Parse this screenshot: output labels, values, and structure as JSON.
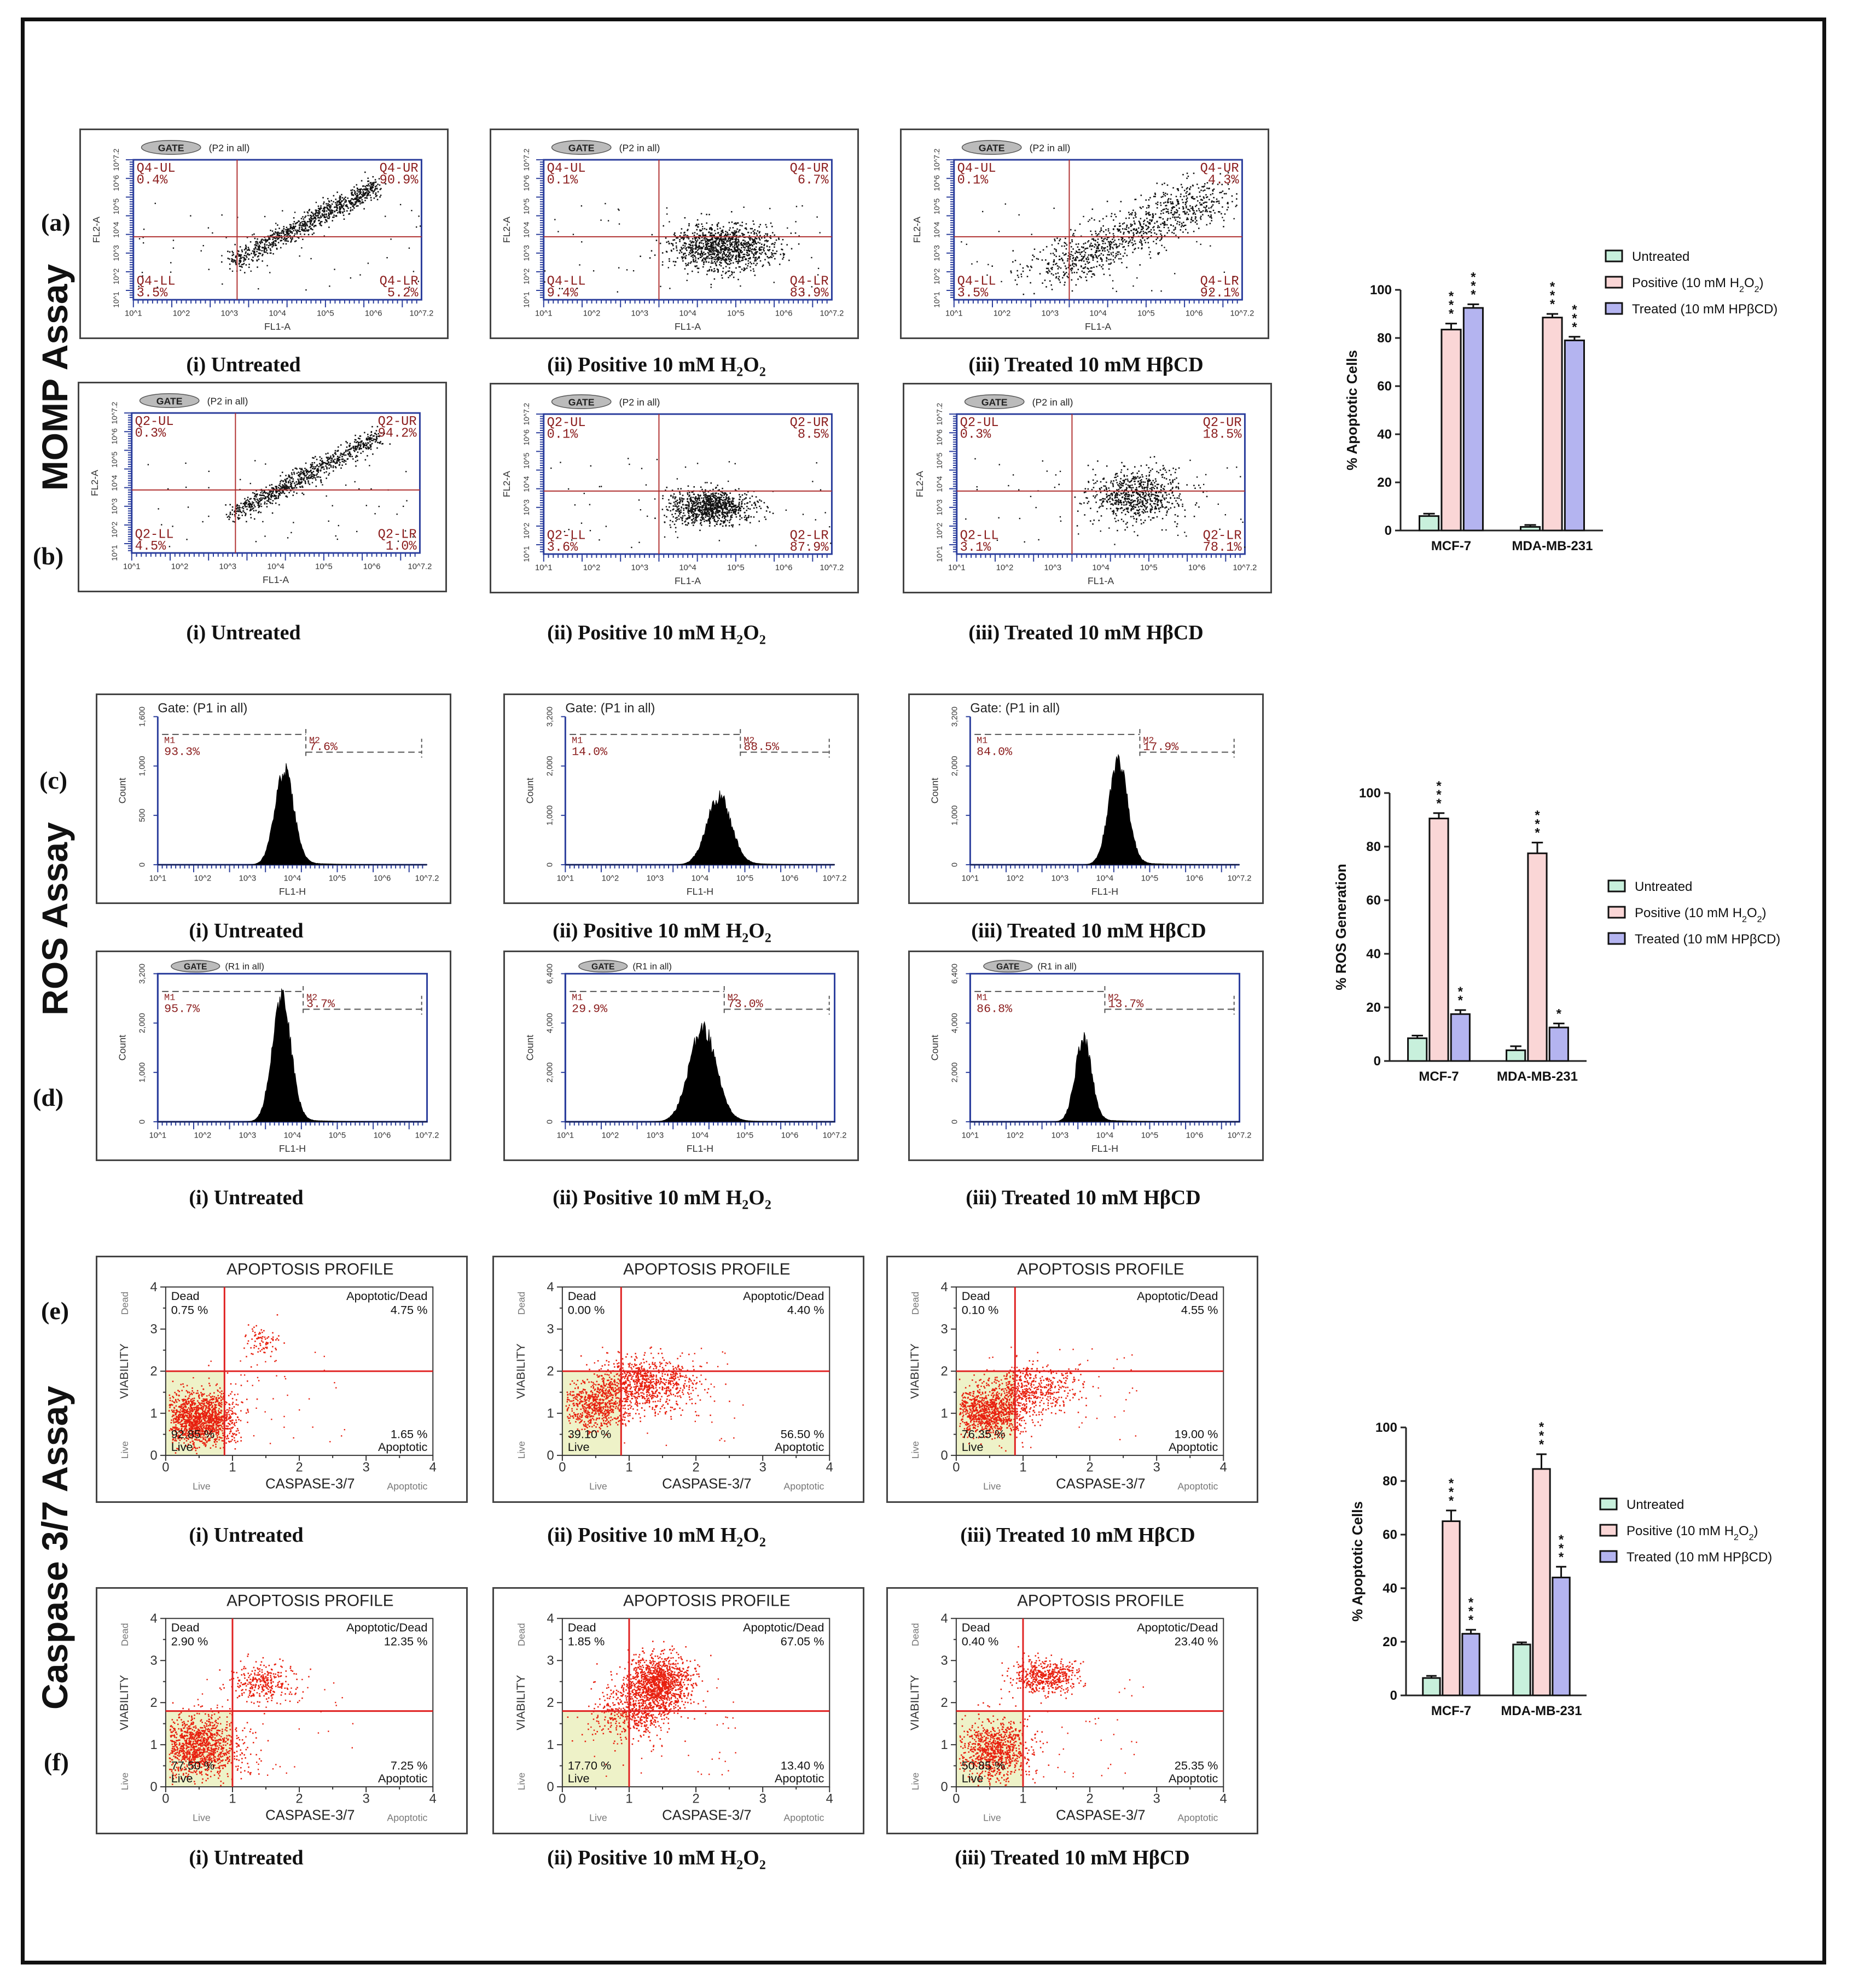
{
  "section_titles": {
    "momp": "MOMP Assay",
    "ros": "ROS Assay",
    "caspase": "Caspase 3/7  Assay"
  },
  "panel_labels": {
    "a": "(a)",
    "b": "(b)",
    "c": "(c)",
    "d": "(d)",
    "e": "(e)",
    "f": "(f)"
  },
  "captions": {
    "untreated": "(i) Untreated",
    "positive_prefix": "(ii) Positive 10 mM H",
    "positive_sub": "2",
    "positive_mid": "O",
    "positive_sub2": "2",
    "treated": "(iii)  Treated 10 mM HβCD"
  },
  "scatter_panels": {
    "gate_badge": "GATE",
    "a": {
      "gate": [
        "(P2 in all)",
        "(P2 in all)",
        "(P2 in all)"
      ],
      "q": [
        {
          "ul": "Q4-UL",
          "ul_v": "0.4%",
          "ur": "Q4-UR",
          "ur_v": "90.9%",
          "ll": "Q4-LL",
          "ll_v": "3.5%",
          "lr": "Q4-LR",
          "lr_v": "5.2%"
        },
        {
          "ul": "Q4-UL",
          "ul_v": "0.1%",
          "ur": "Q4-UR",
          "ur_v": "6.7%",
          "ll": "Q4-LL",
          "ll_v": "9.4%",
          "lr": "Q4-LR",
          "lr_v": "83.9%"
        },
        {
          "ul": "Q4-UL",
          "ul_v": "0.1%",
          "ur": "Q4-UR",
          "ur_v": "4.3%",
          "ll": "Q4-LL",
          "ll_v": "3.5%",
          "lr": "Q4-LR",
          "lr_v": "92.1%"
        }
      ]
    },
    "b": {
      "gate": [
        "(P2 in all)",
        "(P2 in all)",
        "(P2 in all)"
      ],
      "q": [
        {
          "ul": "Q2-UL",
          "ul_v": "0.3%",
          "ur": "Q2-UR",
          "ur_v": "94.2%",
          "ll": "Q2-LL",
          "ll_v": "4.5%",
          "lr": "Q2-LR",
          "lr_v": "1.0%"
        },
        {
          "ul": "Q2-UL",
          "ul_v": "0.1%",
          "ur": "Q2-UR",
          "ur_v": "8.5%",
          "ll": "Q2-LL",
          "ll_v": "3.6%",
          "lr": "Q2-LR",
          "lr_v": "87.9%"
        },
        {
          "ul": "Q2-UL",
          "ul_v": "0.3%",
          "ur": "Q2-UR",
          "ur_v": "18.5%",
          "ll": "Q2-LL",
          "ll_v": "3.1%",
          "lr": "Q2-LR",
          "lr_v": "78.1%"
        }
      ]
    },
    "xlabel": "FL1-A",
    "ylabel": "FL2-A",
    "tick_labels": [
      "10^1",
      "10^2",
      "10^3",
      "10^4",
      "10^5",
      "10^6",
      "10^7.2"
    ]
  },
  "hist_panels": {
    "c": [
      {
        "gate": "Gate: (P1 in all)",
        "m1": "M1",
        "m1_v": "93.3%",
        "m2": "M2",
        "m2_v": "7.6%",
        "y": [
          "0",
          "500",
          "1,000",
          "1,600"
        ]
      },
      {
        "gate": "Gate: (P1 in all)",
        "m1": "M1",
        "m1_v": "14.0%",
        "m2": "M2",
        "m2_v": "88.5%",
        "y": [
          "0",
          "1,000",
          "2,000",
          "3,200"
        ]
      },
      {
        "gate": "Gate: (P1 in all)",
        "m1": "M1",
        "m1_v": "84.0%",
        "m2": "M2",
        "m2_v": "17.9%",
        "y": [
          "0",
          "1,000",
          "2,000",
          "3,200"
        ]
      }
    ],
    "d": [
      {
        "gate": "(R1 in all)",
        "m1": "M1",
        "m1_v": "95.7%",
        "m2": "M2",
        "m2_v": "3.7%",
        "y": [
          "0",
          "1,000",
          "2,000",
          "3,200"
        ]
      },
      {
        "gate": "(R1 in all)",
        "m1": "M1",
        "m1_v": "29.9%",
        "m2": "M2",
        "m2_v": "73.0%",
        "y": [
          "0",
          "2,000",
          "4,000",
          "6,400"
        ]
      },
      {
        "gate": "(R1 in all)",
        "m1": "M1",
        "m1_v": "86.8%",
        "m2": "M2",
        "m2_v": "13.7%",
        "y": [
          "0",
          "2,000",
          "4,000",
          "6,400"
        ]
      }
    ],
    "xlabel": "FL1-H",
    "ylabel": "Count"
  },
  "apoptosis_panels": {
    "title": "APOPTOSIS PROFILE",
    "xlabel": "CASPASE-3/7",
    "ylabel": "VIABILITY",
    "live": "Live",
    "dead": "Dead",
    "apoptotic": "Apoptotic",
    "apoptotic_dead": "Apoptotic/Dead",
    "e": [
      {
        "dead": "0.75 %",
        "ad": "4.75 %",
        "live": "92.85 %",
        "apop": "1.65 %"
      },
      {
        "dead": "0.00 %",
        "ad": "4.40 %",
        "live": "39.10 %",
        "apop": "56.50 %"
      },
      {
        "dead": "0.10 %",
        "ad": "4.55 %",
        "live": "76.35 %",
        "apop": "19.00 %"
      }
    ],
    "f": [
      {
        "dead": "2.90 %",
        "ad": "12.35 %",
        "live": "77.50 %",
        "apop": "7.25 %"
      },
      {
        "dead": "1.85 %",
        "ad": "67.05 %",
        "live": "17.70 %",
        "apop": "13.40 %"
      },
      {
        "dead": "0.40 %",
        "ad": "23.40 %",
        "live": "50.85 %",
        "apop": "25.35 %"
      }
    ]
  },
  "chart_data": [
    {
      "type": "bar",
      "categories": [
        "MCF-7",
        "MDA-MB-231"
      ],
      "ylabel": "% Apoptotic Cells",
      "ylim": [
        0,
        100
      ],
      "yticks": [
        0,
        20,
        40,
        60,
        80,
        100
      ],
      "legend_placement": "top-right",
      "series": [
        {
          "name": "Untreated",
          "values": [
            6,
            1.5
          ],
          "errors": [
            1,
            0.8
          ],
          "color": "#c8f0dc",
          "stars": [
            "",
            ""
          ]
        },
        {
          "name": "Positive (10 mM H2O2)",
          "values": [
            83.5,
            88.5
          ],
          "errors": [
            2.5,
            1.5
          ],
          "color": "#fad6d6",
          "stars": [
            "***",
            "***"
          ]
        },
        {
          "name": "Treated (10 mM HPβCD)",
          "values": [
            92.5,
            79
          ],
          "errors": [
            1.5,
            1.5
          ],
          "color": "#b4b4f0",
          "stars": [
            "***",
            "***"
          ]
        }
      ]
    },
    {
      "type": "bar",
      "categories": [
        "MCF-7",
        "MDA-MB-231"
      ],
      "ylabel": "% ROS Generation",
      "ylim": [
        0,
        100
      ],
      "yticks": [
        0,
        20,
        40,
        60,
        80,
        100
      ],
      "legend_placement": "right",
      "series": [
        {
          "name": "Untreated",
          "values": [
            8.5,
            4
          ],
          "errors": [
            1,
            1.5
          ],
          "color": "#c8f0dc",
          "stars": [
            "",
            ""
          ]
        },
        {
          "name": "Positive (10 mM H2O2)",
          "values": [
            90.5,
            77.5
          ],
          "errors": [
            2,
            4
          ],
          "color": "#fad6d6",
          "stars": [
            "***",
            "***"
          ]
        },
        {
          "name": "Treated (10 mM HPβCD)",
          "values": [
            17.5,
            12.5
          ],
          "errors": [
            1.5,
            1.5
          ],
          "color": "#b4b4f0",
          "stars": [
            "**",
            "*"
          ]
        }
      ]
    },
    {
      "type": "bar",
      "categories": [
        "MCF-7",
        "MDA-MB-231"
      ],
      "ylabel": "% Apoptotic Cells",
      "ylim": [
        0,
        100
      ],
      "yticks": [
        0,
        20,
        40,
        60,
        80,
        100
      ],
      "legend_placement": "right",
      "series": [
        {
          "name": "Untreated",
          "values": [
            6.5,
            19
          ],
          "errors": [
            0.8,
            0.8
          ],
          "color": "#c8f0dc",
          "stars": [
            "",
            ""
          ]
        },
        {
          "name": "Positive (10 mM H2O2)",
          "values": [
            65,
            84.5
          ],
          "errors": [
            4,
            5.5
          ],
          "color": "#fad6d6",
          "stars": [
            "***",
            "***"
          ]
        },
        {
          "name": "Treated (10 mM HPβCD)",
          "values": [
            23,
            44
          ],
          "errors": [
            1.5,
            4
          ],
          "color": "#b4b4f0",
          "stars": [
            "***",
            "***"
          ]
        }
      ]
    }
  ]
}
